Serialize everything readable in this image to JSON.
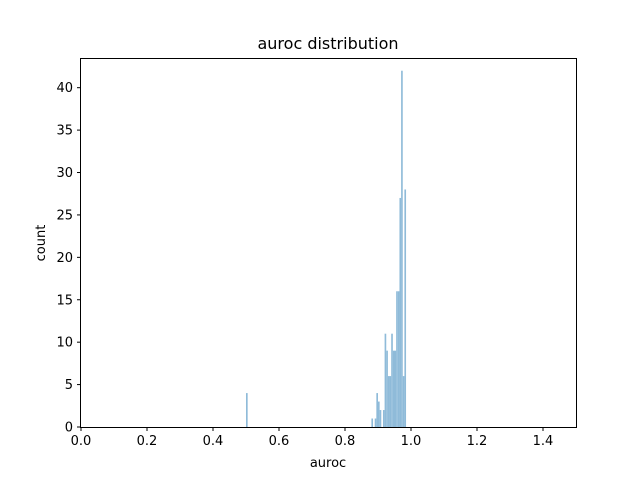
{
  "chart_data": {
    "type": "bar",
    "title": "auroc distribution",
    "xlabel": "auroc",
    "ylabel": "count",
    "xlim": [
      0.0,
      1.5
    ],
    "ylim": [
      0,
      43.5
    ],
    "x_ticks": [
      "0.0",
      "0.2",
      "0.4",
      "0.6",
      "0.8",
      "1.0",
      "1.2",
      "1.4"
    ],
    "y_ticks": [
      "0",
      "5",
      "10",
      "15",
      "20",
      "25",
      "30",
      "35",
      "40"
    ],
    "grid": false,
    "bar_color": "#8fbbd9",
    "bin_width": 0.005,
    "bins": [
      {
        "x": 0.5,
        "count": 4
      },
      {
        "x": 0.88,
        "count": 1
      },
      {
        "x": 0.89,
        "count": 1
      },
      {
        "x": 0.895,
        "count": 4
      },
      {
        "x": 0.9,
        "count": 3
      },
      {
        "x": 0.905,
        "count": 2
      },
      {
        "x": 0.915,
        "count": 2
      },
      {
        "x": 0.92,
        "count": 11
      },
      {
        "x": 0.925,
        "count": 9
      },
      {
        "x": 0.93,
        "count": 6
      },
      {
        "x": 0.935,
        "count": 6
      },
      {
        "x": 0.94,
        "count": 11
      },
      {
        "x": 0.945,
        "count": 9
      },
      {
        "x": 0.95,
        "count": 9
      },
      {
        "x": 0.955,
        "count": 16
      },
      {
        "x": 0.96,
        "count": 16
      },
      {
        "x": 0.965,
        "count": 27
      },
      {
        "x": 0.97,
        "count": 42
      },
      {
        "x": 0.975,
        "count": 6
      },
      {
        "x": 0.98,
        "count": 28
      }
    ]
  }
}
